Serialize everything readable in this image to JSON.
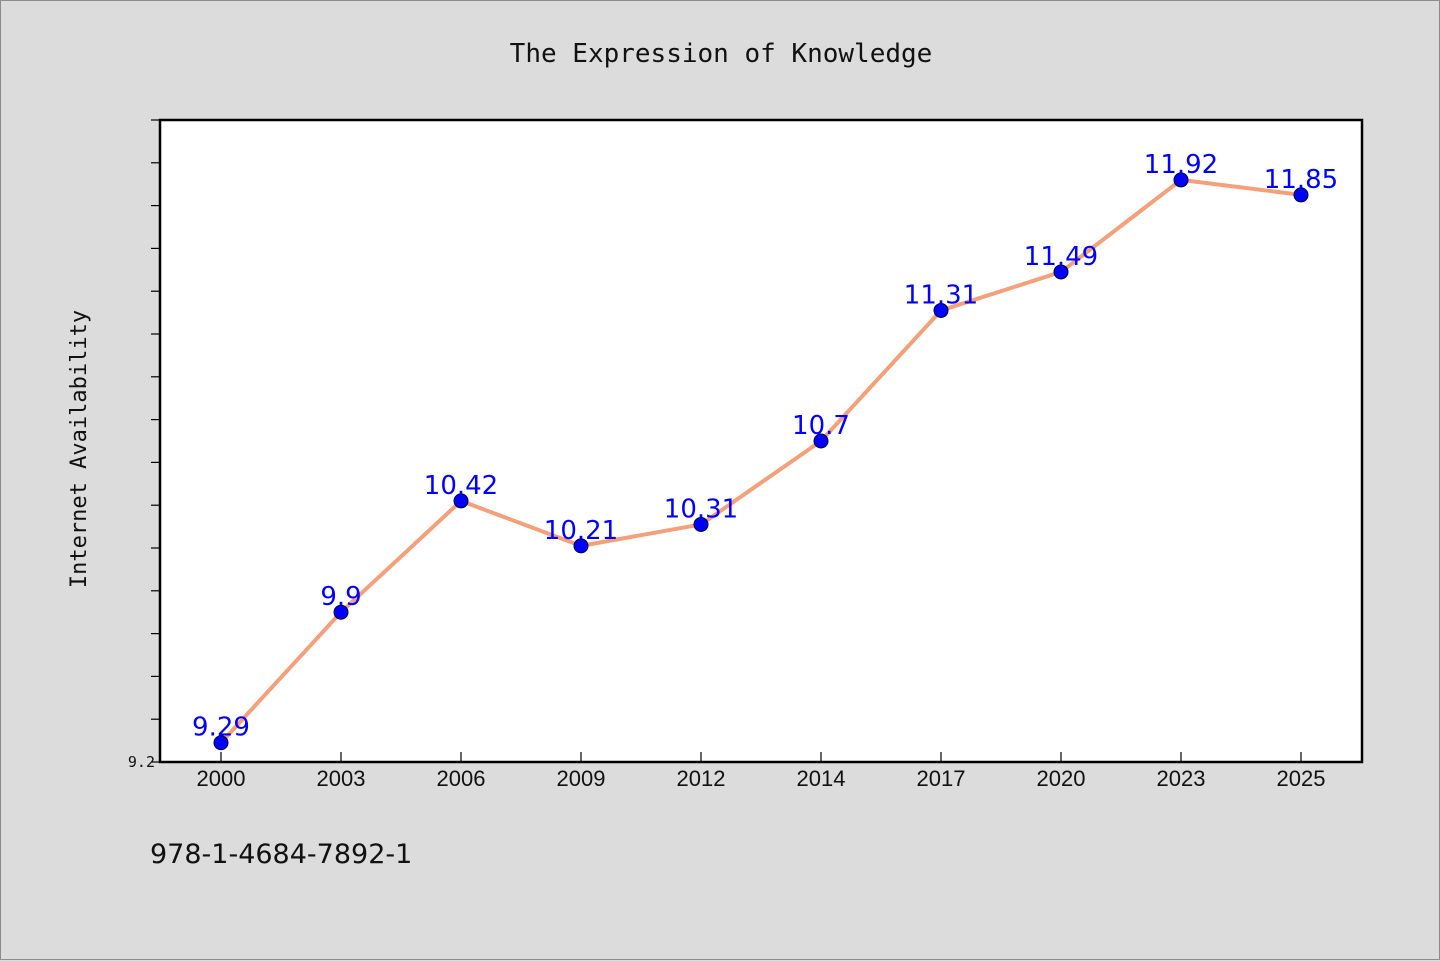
{
  "chart_data": {
    "type": "line",
    "title": "The Expression of Knowledge",
    "ylabel": "Internet Availability",
    "xlabel": "",
    "categories": [
      "2000",
      "2003",
      "2006",
      "2009",
      "2012",
      "2014",
      "2017",
      "2020",
      "2023",
      "2025"
    ],
    "values": [
      9.29,
      9.9,
      10.42,
      10.21,
      10.31,
      10.7,
      11.31,
      11.49,
      11.92,
      11.85
    ],
    "data_labels": [
      "9.29",
      "9.9",
      "10.42",
      "10.21",
      "10.31",
      "10.7",
      "11.31",
      "11.49",
      "11.92",
      "11.85"
    ],
    "ylim": [
      9.2,
      12.2
    ],
    "yticks_labeled": [
      "9.2"
    ],
    "grid": false,
    "legend": "none",
    "line_color": "#f4a07a",
    "marker_color": "#0000ff",
    "label_color": "#0000ff"
  },
  "footer": {
    "isbn": "978-1-4684-7892-1"
  }
}
